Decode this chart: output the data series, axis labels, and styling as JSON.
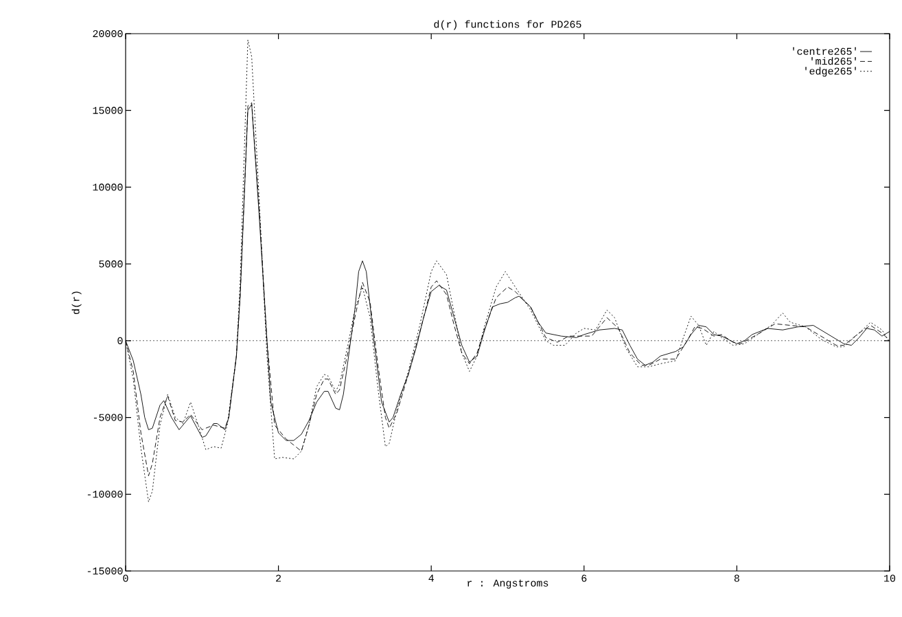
{
  "chart_data": {
    "type": "line",
    "title": "d(r) functions for PD265",
    "xlabel": "r : Angstroms",
    "ylabel": "d(r)",
    "xlim": [
      0,
      10
    ],
    "ylim": [
      -15000,
      20000
    ],
    "xticks": [
      0,
      2,
      4,
      6,
      8,
      10
    ],
    "yticks": [
      -15000,
      -10000,
      -5000,
      0,
      5000,
      10000,
      15000,
      20000
    ],
    "grid": false,
    "legend": "top right",
    "ref_lines": [
      {
        "axis": "y",
        "value": 0,
        "line_style": "dotted",
        "color": "#000000"
      }
    ],
    "series": [
      {
        "name": "'centre265'",
        "color": "#000000",
        "line_style": "solid",
        "x": [
          0,
          0.1,
          0.2,
          0.25,
          0.3,
          0.35,
          0.45,
          0.5,
          0.6,
          0.7,
          0.85,
          1.0,
          1.05,
          1.15,
          1.2,
          1.3,
          1.35,
          1.45,
          1.5,
          1.6,
          1.65,
          1.75,
          1.85,
          1.9,
          2.0,
          2.1,
          2.2,
          2.3,
          2.4,
          2.5,
          2.6,
          2.65,
          2.75,
          2.8,
          2.85,
          3.0,
          3.05,
          3.1,
          3.15,
          3.25,
          3.35,
          3.45,
          3.5,
          3.6,
          3.7,
          3.8,
          3.9,
          4.0,
          4.1,
          4.2,
          4.3,
          4.4,
          4.5,
          4.6,
          4.7,
          4.8,
          4.9,
          5.0,
          5.1,
          5.15,
          5.3,
          5.4,
          5.5,
          5.7,
          5.9,
          6.0,
          6.2,
          6.4,
          6.5,
          6.6,
          6.7,
          6.8,
          6.9,
          7.0,
          7.2,
          7.3,
          7.4,
          7.5,
          7.6,
          7.7,
          7.8,
          8.0,
          8.1,
          8.2,
          8.4,
          8.6,
          8.8,
          9.0,
          9.2,
          9.4,
          9.5,
          9.6,
          9.7,
          9.8,
          9.9,
          10.0
        ],
        "values": [
          0,
          -1300,
          -3500,
          -5000,
          -5800,
          -5700,
          -4200,
          -3900,
          -5000,
          -5800,
          -4900,
          -6300,
          -6200,
          -5400,
          -5400,
          -5800,
          -5000,
          -1000,
          3000,
          15000,
          15400,
          8000,
          0,
          -4000,
          -6000,
          -6500,
          -6500,
          -6100,
          -5200,
          -4000,
          -3300,
          -3300,
          -4400,
          -4500,
          -3500,
          2000,
          4500,
          5200,
          4500,
          0,
          -4000,
          -5300,
          -5000,
          -3500,
          -2200,
          -500,
          1500,
          3200,
          3600,
          3300,
          1500,
          -300,
          -1400,
          -1000,
          700,
          2200,
          2400,
          2500,
          2800,
          2900,
          2200,
          1200,
          500,
          300,
          200,
          400,
          700,
          800,
          700,
          -300,
          -1200,
          -1600,
          -1400,
          -1000,
          -700,
          -400,
          400,
          1000,
          900,
          400,
          300,
          -200,
          0,
          400,
          800,
          700,
          900,
          1000,
          400,
          -200,
          -300,
          200,
          800,
          700,
          300,
          600
        ]
      },
      {
        "name": "'mid265'",
        "color": "#000000",
        "line_style": "dashed",
        "x": [
          0,
          0.1,
          0.2,
          0.3,
          0.35,
          0.45,
          0.55,
          0.65,
          0.75,
          0.85,
          1.0,
          1.15,
          1.3,
          1.35,
          1.45,
          1.5,
          1.6,
          1.65,
          1.75,
          1.85,
          1.95,
          2.1,
          2.2,
          2.3,
          2.4,
          2.5,
          2.6,
          2.65,
          2.75,
          2.8,
          2.9,
          3.0,
          3.1,
          3.2,
          3.3,
          3.4,
          3.45,
          3.55,
          3.7,
          3.9,
          4.0,
          4.07,
          4.2,
          4.3,
          4.4,
          4.5,
          4.6,
          4.7,
          4.85,
          5.0,
          5.1,
          5.3,
          5.5,
          5.65,
          5.8,
          5.9,
          6.1,
          6.3,
          6.45,
          6.6,
          6.75,
          6.85,
          7.0,
          7.2,
          7.35,
          7.45,
          7.55,
          7.7,
          7.8,
          7.95,
          8.05,
          8.3,
          8.5,
          8.7,
          8.9,
          9.1,
          9.3,
          9.4,
          9.6,
          9.75,
          9.9,
          10.0
        ],
        "values": [
          0,
          -2000,
          -6000,
          -8800,
          -8000,
          -5000,
          -3600,
          -5200,
          -5300,
          -4800,
          -5800,
          -5500,
          -5700,
          -5000,
          -1000,
          3000,
          15300,
          15500,
          8500,
          0,
          -5500,
          -6400,
          -6800,
          -7200,
          -5500,
          -3500,
          -2500,
          -2500,
          -3500,
          -3200,
          -1000,
          1500,
          3800,
          2500,
          -1500,
          -5000,
          -5700,
          -4700,
          -2200,
          1500,
          3500,
          3900,
          3000,
          1000,
          -800,
          -1500,
          -800,
          800,
          2800,
          3500,
          3200,
          2200,
          200,
          -100,
          300,
          300,
          300,
          1500,
          800,
          -800,
          -1600,
          -1600,
          -1200,
          -1200,
          0,
          900,
          800,
          300,
          400,
          -100,
          -200,
          500,
          1100,
          1000,
          900,
          300,
          -300,
          -300,
          500,
          1000,
          500,
          0
        ]
      },
      {
        "name": "'edge265'",
        "color": "#000000",
        "line_style": "dotted",
        "x": [
          0,
          0.1,
          0.2,
          0.3,
          0.35,
          0.45,
          0.55,
          0.65,
          0.75,
          0.85,
          0.95,
          1.05,
          1.15,
          1.25,
          1.33,
          1.45,
          1.5,
          1.6,
          1.65,
          1.75,
          1.85,
          1.95,
          2.05,
          2.2,
          2.3,
          2.4,
          2.5,
          2.6,
          2.65,
          2.75,
          2.8,
          2.9,
          3.0,
          3.1,
          3.2,
          3.3,
          3.4,
          3.45,
          3.55,
          3.7,
          3.85,
          4.0,
          4.07,
          4.2,
          4.3,
          4.4,
          4.5,
          4.6,
          4.7,
          4.85,
          4.97,
          5.1,
          5.3,
          5.5,
          5.6,
          5.75,
          5.9,
          6.0,
          6.15,
          6.3,
          6.4,
          6.55,
          6.7,
          6.85,
          7.0,
          7.2,
          7.3,
          7.4,
          7.5,
          7.6,
          7.7,
          7.8,
          7.95,
          8.1,
          8.3,
          8.45,
          8.6,
          8.7,
          8.9,
          9.1,
          9.3,
          9.4,
          9.6,
          9.75,
          9.9,
          10.0
        ],
        "values": [
          0,
          -2500,
          -7000,
          -10500,
          -9800,
          -5500,
          -3500,
          -5000,
          -5400,
          -4000,
          -5500,
          -7100,
          -6900,
          -7000,
          -5500,
          -1000,
          4000,
          19600,
          18500,
          9000,
          -1000,
          -7700,
          -7600,
          -7700,
          -7200,
          -5500,
          -3000,
          -2200,
          -2300,
          -3300,
          -2800,
          -500,
          2000,
          3500,
          1500,
          -3000,
          -6900,
          -6700,
          -4500,
          -2000,
          1000,
          4500,
          5200,
          4300,
          1800,
          -800,
          -2000,
          -1000,
          1000,
          3500,
          4500,
          3500,
          2000,
          0,
          -300,
          -300,
          500,
          800,
          700,
          2000,
          1500,
          -500,
          -1700,
          -1700,
          -1500,
          -1300,
          200,
          1600,
          1000,
          -300,
          600,
          200,
          -300,
          -200,
          500,
          1000,
          1800,
          1200,
          900,
          100,
          -400,
          -400,
          500,
          1200,
          700,
          -100
        ]
      }
    ]
  }
}
